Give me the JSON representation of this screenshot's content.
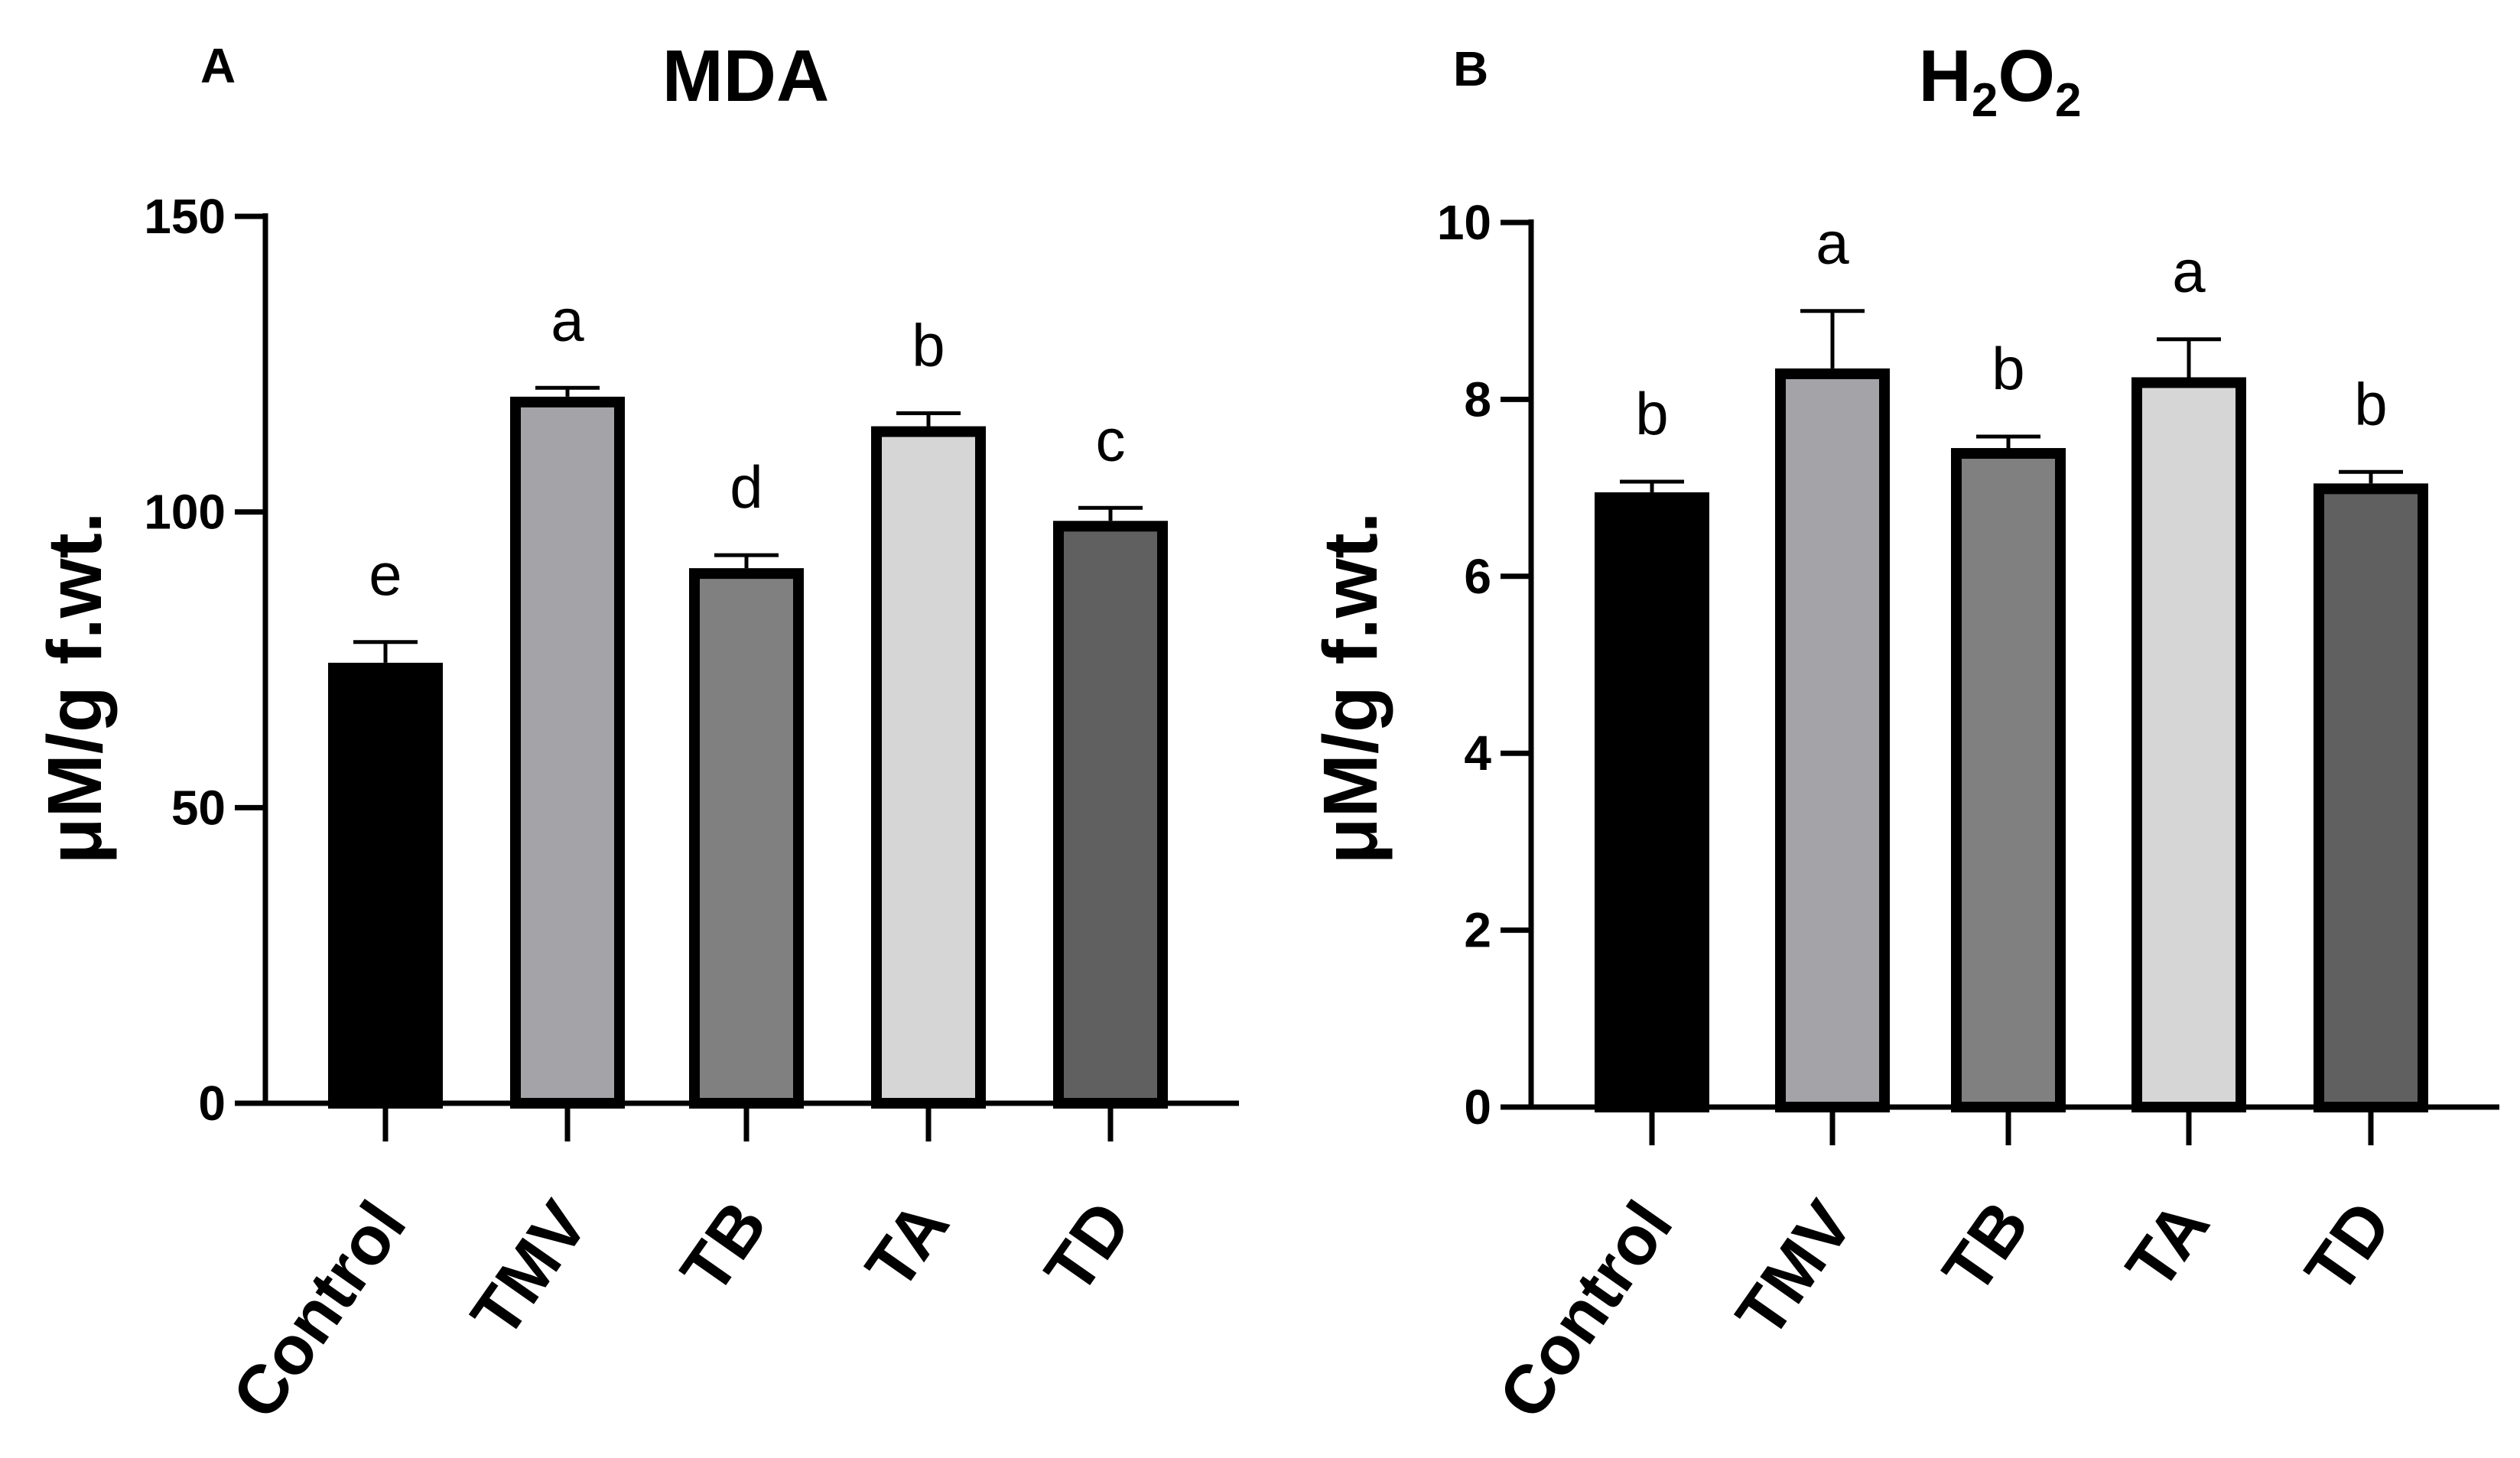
{
  "chart_data": [
    {
      "type": "bar",
      "panel": "A",
      "title": "MDA",
      "ylabel": "μM/g f.wt.",
      "xlabel": "",
      "categories": [
        "Control",
        "TMV",
        "TB",
        "TA",
        "TD"
      ],
      "values": [
        74.5,
        119.5,
        90.5,
        114.5,
        98.5
      ],
      "errors": [
        3.5,
        1.5,
        2.2,
        2.2,
        2.2
      ],
      "significance": [
        "e",
        "a",
        "d",
        "b",
        "c"
      ],
      "bar_colors": [
        "#000000",
        "#a4a4a8",
        "#808080",
        "#d6d6d6",
        "#606060"
      ],
      "ylim": [
        0,
        150
      ],
      "yticks": [
        0,
        50,
        100,
        150
      ],
      "ytick_labels": [
        "0",
        "50",
        "100",
        "150"
      ]
    },
    {
      "type": "bar",
      "panel": "B",
      "title": "H2O2",
      "title_parts": {
        "h": "H",
        "sub1": "2",
        "o": "O",
        "sub2": "2"
      },
      "ylabel": "μM/g f.wt.",
      "xlabel": "",
      "categories": [
        "Control",
        "TMV",
        "TB",
        "TA",
        "TD"
      ],
      "values": [
        6.95,
        8.35,
        7.45,
        8.25,
        7.05
      ],
      "errors": [
        0.12,
        0.65,
        0.13,
        0.43,
        0.13
      ],
      "significance": [
        "b",
        "a",
        "b",
        "a",
        "b"
      ],
      "bar_colors": [
        "#000000",
        "#a4a4a8",
        "#808080",
        "#d6d6d6",
        "#606060"
      ],
      "ylim": [
        0,
        10
      ],
      "yticks": [
        0,
        2,
        4,
        6,
        8,
        10
      ],
      "ytick_labels": [
        "0",
        "2",
        "4",
        "6",
        "8",
        "10"
      ]
    }
  ]
}
